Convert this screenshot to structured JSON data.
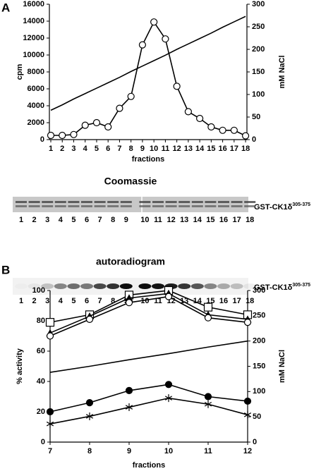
{
  "panel_labels": [
    "A",
    "B"
  ],
  "chart_data": [
    {
      "type": "line",
      "categories": [
        "1",
        "2",
        "3",
        "4",
        "5",
        "6",
        "7",
        "8",
        "9",
        "10",
        "11",
        "12",
        "13",
        "14",
        "15",
        "16",
        "17",
        "18"
      ],
      "xlabel": "fractions",
      "ylabel": "cpm",
      "y2label": "mM NaCl",
      "ylim": [
        0,
        16000
      ],
      "yticks": [
        0,
        2000,
        4000,
        6000,
        8000,
        10000,
        12000,
        14000,
        16000
      ],
      "y2lim": [
        0,
        300
      ],
      "y2ticks": [
        0,
        50,
        100,
        150,
        200,
        250,
        300
      ],
      "series": [
        {
          "marker": "circle-open",
          "color": "#000000",
          "values": [
            500,
            500,
            600,
            1700,
            2000,
            1500,
            3700,
            5100,
            11200,
            13900,
            11900,
            6300,
            3300,
            2500,
            1500,
            1100,
            1100,
            450
          ]
        },
        {
          "marker": "none",
          "axis": "y2",
          "color": "#000000",
          "values": [
            65,
            77,
            90,
            102,
            114,
            126,
            138,
            151,
            163,
            175,
            187,
            200,
            212,
            224,
            236,
            249,
            261,
            273
          ]
        }
      ]
    },
    {
      "type": "line",
      "x": [
        7,
        8,
        9,
        10,
        11,
        12
      ],
      "xlim": [
        7,
        12
      ],
      "xticks": [
        7,
        8,
        9,
        10,
        11,
        12
      ],
      "xlabel": "fractions",
      "ylabel": "% activity",
      "y2label": "mM NaCl",
      "ylim": [
        0,
        100
      ],
      "yticks": [
        0,
        20,
        40,
        60,
        80,
        100
      ],
      "y2lim": [
        0,
        300
      ],
      "y2ticks": [
        0,
        50,
        100,
        150,
        200,
        250,
        300
      ],
      "series": [
        {
          "marker": "square",
          "color": "#000000",
          "values": [
            79,
            84,
            97,
            100,
            89,
            84
          ]
        },
        {
          "marker": "triangle",
          "color": "#000000",
          "values": [
            72,
            83,
            95,
            98,
            84,
            81
          ]
        },
        {
          "marker": "circle-open",
          "color": "#000000",
          "values": [
            70,
            81,
            92,
            96,
            82,
            79
          ]
        },
        {
          "marker": "circle",
          "color": "#000000",
          "values": [
            20,
            26,
            34,
            38,
            30,
            27
          ]
        },
        {
          "marker": "asterisk",
          "color": "#000000",
          "values": [
            12,
            17,
            23,
            29,
            25,
            18
          ]
        },
        {
          "marker": "none",
          "axis": "y2",
          "color": "#000000",
          "values": [
            138,
            150,
            163,
            175,
            188,
            200
          ]
        }
      ]
    }
  ],
  "gels": [
    {
      "title": "Coomassie",
      "protein": "GST-CK1δ",
      "superscript": "305-375",
      "lanes": [
        "1",
        "2",
        "3",
        "4",
        "5",
        "6",
        "7",
        "8",
        "9",
        "10",
        "11",
        "12",
        "13",
        "14",
        "15",
        "16",
        "17",
        "18"
      ]
    },
    {
      "title": "autoradiogram",
      "protein": "GST-CK1δ",
      "superscript": "305-375",
      "lanes": [
        "1",
        "2",
        "3",
        "4",
        "5",
        "6",
        "7",
        "8",
        "9",
        "10",
        "11",
        "12",
        "13",
        "14",
        "15",
        "16",
        "17",
        "18"
      ]
    }
  ]
}
